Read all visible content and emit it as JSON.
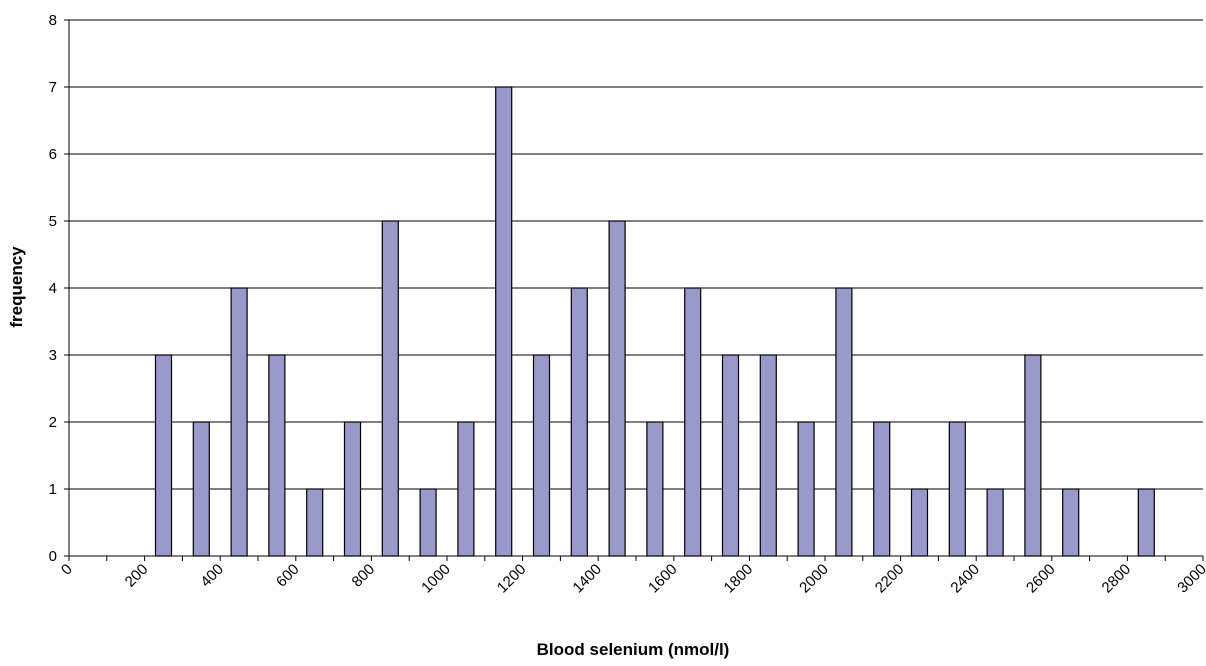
{
  "chart_data": {
    "type": "bar",
    "xlabel": "Blood selenium (nmol/l)",
    "ylabel": "frequency",
    "ylim": [
      0,
      8
    ],
    "yticks": [
      0,
      1,
      2,
      3,
      4,
      5,
      6,
      7,
      8
    ],
    "xticks": [
      "0",
      "200",
      "400",
      "600",
      "800",
      "1000",
      "1200",
      "1400",
      "1600",
      "1800",
      "2000",
      "2200",
      "2400",
      "2600",
      "2800",
      "3000"
    ],
    "grid": true,
    "bar_color": "#9999cc",
    "bins": [
      0,
      100,
      200,
      300,
      400,
      500,
      600,
      700,
      800,
      900,
      1000,
      1100,
      1200,
      1300,
      1400,
      1500,
      1600,
      1700,
      1800,
      1900,
      2000,
      2100,
      2200,
      2300,
      2400,
      2500,
      2600,
      2700,
      2800,
      2900
    ],
    "values": [
      0,
      0,
      3,
      2,
      4,
      3,
      1,
      2,
      5,
      1,
      2,
      7,
      3,
      4,
      5,
      2,
      4,
      3,
      3,
      2,
      4,
      2,
      1,
      2,
      1,
      3,
      1,
      0,
      1,
      0
    ]
  }
}
